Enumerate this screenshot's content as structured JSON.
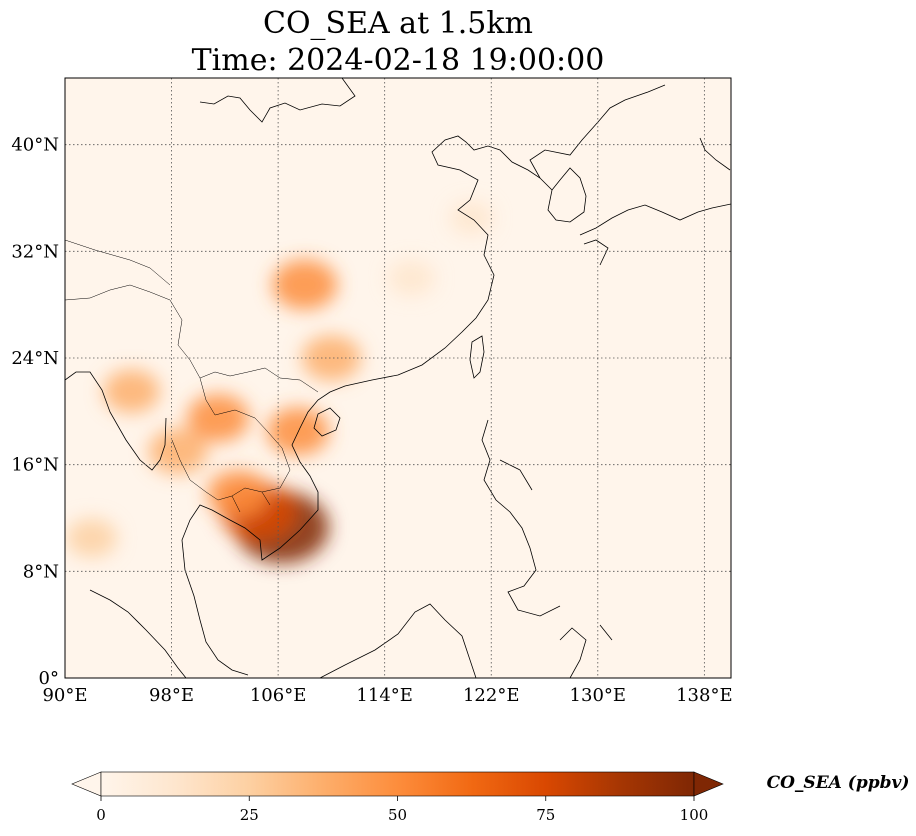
{
  "chart_data": {
    "type": "heatmap",
    "title_line1": "CO_SEA at 1.5km",
    "title_line2": "Time: 2024-02-18 19:00:00",
    "xlim": [
      90,
      140
    ],
    "ylim": [
      0,
      45
    ],
    "x_ticks": [
      {
        "value": 90,
        "label": "90°E"
      },
      {
        "value": 98,
        "label": "98°E"
      },
      {
        "value": 106,
        "label": "106°E"
      },
      {
        "value": 114,
        "label": "114°E"
      },
      {
        "value": 122,
        "label": "122°E"
      },
      {
        "value": 130,
        "label": "130°E"
      },
      {
        "value": 138,
        "label": "138°E"
      }
    ],
    "y_ticks": [
      {
        "value": 0,
        "label": "0°"
      },
      {
        "value": 8,
        "label": "8°N"
      },
      {
        "value": 16,
        "label": "16°N"
      },
      {
        "value": 24,
        "label": "24°N"
      },
      {
        "value": 32,
        "label": "32°N"
      },
      {
        "value": 40,
        "label": "40°N"
      }
    ],
    "grid": true,
    "colormap": [
      "#fff5eb",
      "#fee6ce",
      "#fdd0a2",
      "#fdae6b",
      "#fd8d3c",
      "#f16913",
      "#d94801",
      "#a63603",
      "#7f2704"
    ],
    "colorbar": {
      "range": [
        0,
        100
      ],
      "extend": "both",
      "ticks": [
        {
          "value": 0,
          "label": "0"
        },
        {
          "value": 25,
          "label": "25"
        },
        {
          "value": 50,
          "label": "50"
        },
        {
          "value": 75,
          "label": "75"
        },
        {
          "value": 100,
          "label": "100"
        }
      ],
      "label": "CO_SEA (ppbv)",
      "placement": "bottom"
    },
    "plumes": [
      {
        "lon": 106.3,
        "lat": 11.3,
        "value": 100
      },
      {
        "lon": 104.5,
        "lat": 12.5,
        "value": 70
      },
      {
        "lon": 103.0,
        "lat": 13.8,
        "value": 45
      },
      {
        "lon": 107.5,
        "lat": 18.5,
        "value": 45
      },
      {
        "lon": 110.0,
        "lat": 24.0,
        "value": 40
      },
      {
        "lon": 108.0,
        "lat": 29.5,
        "value": 50
      },
      {
        "lon": 101.5,
        "lat": 19.5,
        "value": 45
      },
      {
        "lon": 95.0,
        "lat": 21.5,
        "value": 35
      },
      {
        "lon": 98.5,
        "lat": 17.0,
        "value": 40
      },
      {
        "lon": 92.0,
        "lat": 10.5,
        "value": 25
      },
      {
        "lon": 116.0,
        "lat": 30.0,
        "value": 18
      },
      {
        "lon": 120.5,
        "lat": 34.5,
        "value": 12
      }
    ]
  }
}
